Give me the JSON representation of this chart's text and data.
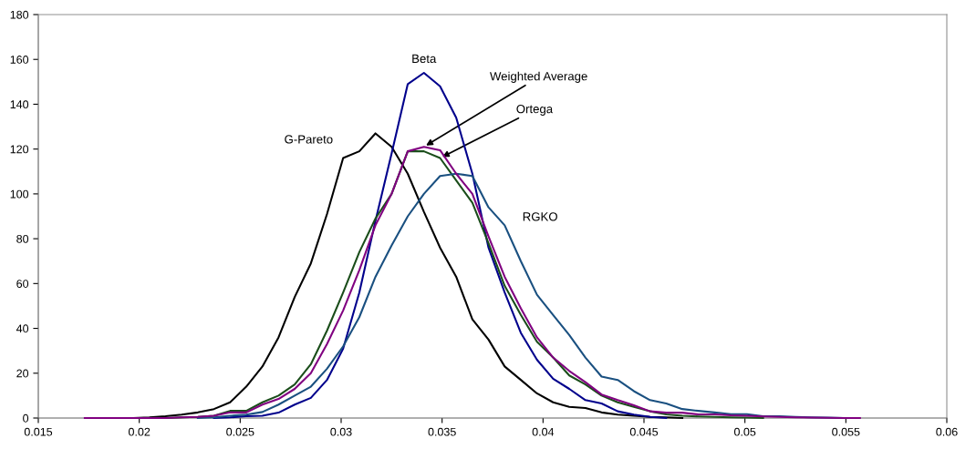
{
  "chart_data": {
    "type": "line",
    "x": [
      0.0173,
      0.0181,
      0.0189,
      0.0197,
      0.0205,
      0.0213,
      0.0221,
      0.0229,
      0.0237,
      0.0245,
      0.0253,
      0.0261,
      0.0269,
      0.0277,
      0.0285,
      0.0293,
      0.0301,
      0.0309,
      0.0317,
      0.0325,
      0.0333,
      0.0341,
      0.0349,
      0.0357,
      0.0365,
      0.0373,
      0.0381,
      0.0389,
      0.0397,
      0.0405,
      0.0413,
      0.0421,
      0.0429,
      0.0437,
      0.0445,
      0.0453,
      0.0461,
      0.0469,
      0.0477,
      0.0485,
      0.0493,
      0.0501,
      0.0509,
      0.0517,
      0.0525,
      0.0533,
      0.0541,
      0.0549,
      0.0557
    ],
    "series": [
      {
        "name": "G-Pareto",
        "color": "#000000",
        "values": [
          null,
          null,
          null,
          0,
          0.3,
          0.8,
          1.5,
          2.5,
          4,
          7,
          14,
          23,
          36,
          54,
          69,
          91,
          116,
          119,
          127,
          121,
          109,
          92,
          76,
          63,
          44,
          35,
          23,
          17,
          11,
          7,
          5,
          4.5,
          2.5,
          1.5,
          1,
          0.5,
          0.3,
          0,
          null,
          null,
          null,
          null,
          null,
          null,
          null,
          null,
          null,
          null,
          null
        ]
      },
      {
        "name": "Beta",
        "color": "#00008c",
        "values": [
          null,
          null,
          null,
          null,
          null,
          null,
          null,
          null,
          0,
          0.3,
          0.8,
          1,
          2.4,
          6,
          9,
          17,
          31,
          56,
          88,
          118,
          149,
          154,
          148,
          134,
          109,
          76,
          56,
          38,
          26,
          17.5,
          13,
          8,
          6.5,
          3,
          1.5,
          0.5,
          0,
          null,
          null,
          null,
          null,
          null,
          null,
          null,
          null,
          null,
          null,
          null,
          null
        ]
      },
      {
        "name": "Weighted Average",
        "color": "#800080",
        "values": [
          0,
          0,
          0,
          0,
          0,
          0,
          0.3,
          0.5,
          1,
          2.5,
          2.5,
          6,
          8.5,
          13,
          20,
          33,
          48,
          66,
          86,
          100,
          119,
          121,
          119.5,
          109,
          100,
          81,
          63,
          49,
          36,
          27,
          21,
          16,
          10.5,
          8,
          5.7,
          3,
          2.4,
          2.4,
          1.6,
          1.6,
          1.2,
          1,
          0.7,
          0.5,
          0.3,
          0.2,
          0.1,
          0,
          0
        ]
      },
      {
        "name": "Ortega",
        "color": "#1a4d1a",
        "values": [
          null,
          null,
          null,
          null,
          null,
          0,
          0.3,
          0.5,
          1,
          3.2,
          3.2,
          7,
          10,
          15,
          24,
          39,
          56,
          74,
          89,
          100,
          119,
          119,
          116,
          106,
          96,
          78,
          59,
          46,
          34,
          27,
          19,
          15,
          10,
          7,
          5,
          3,
          1.6,
          1,
          0.7,
          0.5,
          0.3,
          0.2,
          0,
          null,
          null,
          null,
          null,
          null,
          null
        ]
      },
      {
        "name": "RGKO",
        "color": "#1a5080",
        "values": [
          null,
          null,
          null,
          null,
          null,
          null,
          null,
          0,
          0.3,
          1,
          1.5,
          2.7,
          6,
          10,
          14,
          22,
          32,
          45,
          63,
          77,
          90,
          100,
          108,
          109,
          108,
          94,
          86,
          70,
          55,
          46,
          37,
          27,
          18.5,
          17,
          12,
          8,
          6.5,
          4,
          3.2,
          2.5,
          1.7,
          1.7,
          0.8,
          0.8,
          0.5,
          0.3,
          0.2,
          0,
          null
        ]
      }
    ],
    "xlim": [
      0.015,
      0.06
    ],
    "xticks": [
      0.015,
      0.02,
      0.025,
      0.03,
      0.035,
      0.04,
      0.045,
      0.05,
      0.055,
      0.06
    ],
    "ylim": [
      0,
      180
    ],
    "yticks": [
      0,
      20,
      40,
      60,
      80,
      100,
      120,
      140,
      160,
      180
    ],
    "grid": false,
    "legend": false,
    "marker": "none",
    "line_style": "solid"
  }
}
